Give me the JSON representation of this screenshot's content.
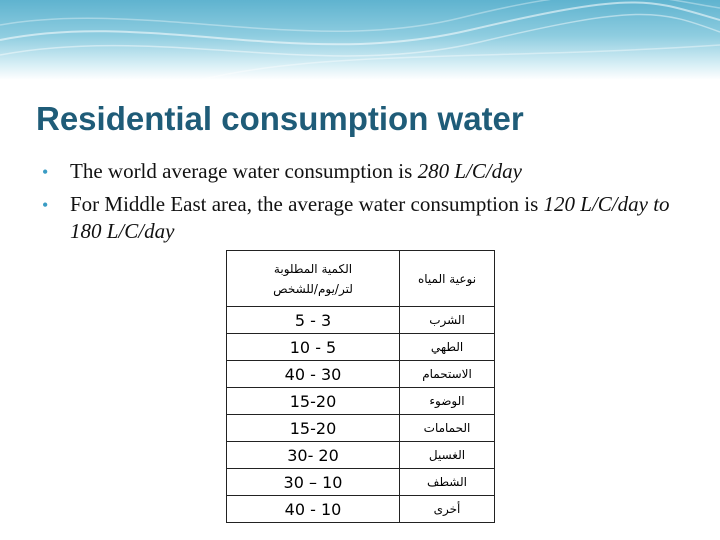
{
  "slide": {
    "title": "Residential consumption water",
    "bullets": [
      {
        "text_before": "The world average water consumption is ",
        "italic": "280 L/C/day",
        "text_after": ""
      },
      {
        "text_before": "For Middle East area, the average water consumption is ",
        "italic": "120 L/C/day to 180 L/C/day",
        "text_after": ""
      }
    ]
  },
  "table": {
    "header": {
      "amount_line1": "الكمية المطلوبة",
      "amount_line2": "لتر/يوم/للشخص",
      "type": "نوعية المياه"
    },
    "rows": [
      {
        "amount": "5 - 3",
        "type": "الشرب"
      },
      {
        "amount": "10 - 5",
        "type": "الطهي"
      },
      {
        "amount": "40 - 30",
        "type": "الاستحمام"
      },
      {
        "amount": "15-20",
        "type": "الوضوء"
      },
      {
        "amount": "15-20",
        "type": "الحمامات"
      },
      {
        "amount": "30- 20",
        "type": "الغسيل"
      },
      {
        "amount": "30 – 10",
        "type": "الشطف"
      },
      {
        "amount": "40 - 10",
        "type": "أخرى"
      }
    ]
  },
  "colors": {
    "title": "#1f5c78",
    "bullet_dot": "#3a9cc4",
    "banner": "#5fb3cf"
  }
}
